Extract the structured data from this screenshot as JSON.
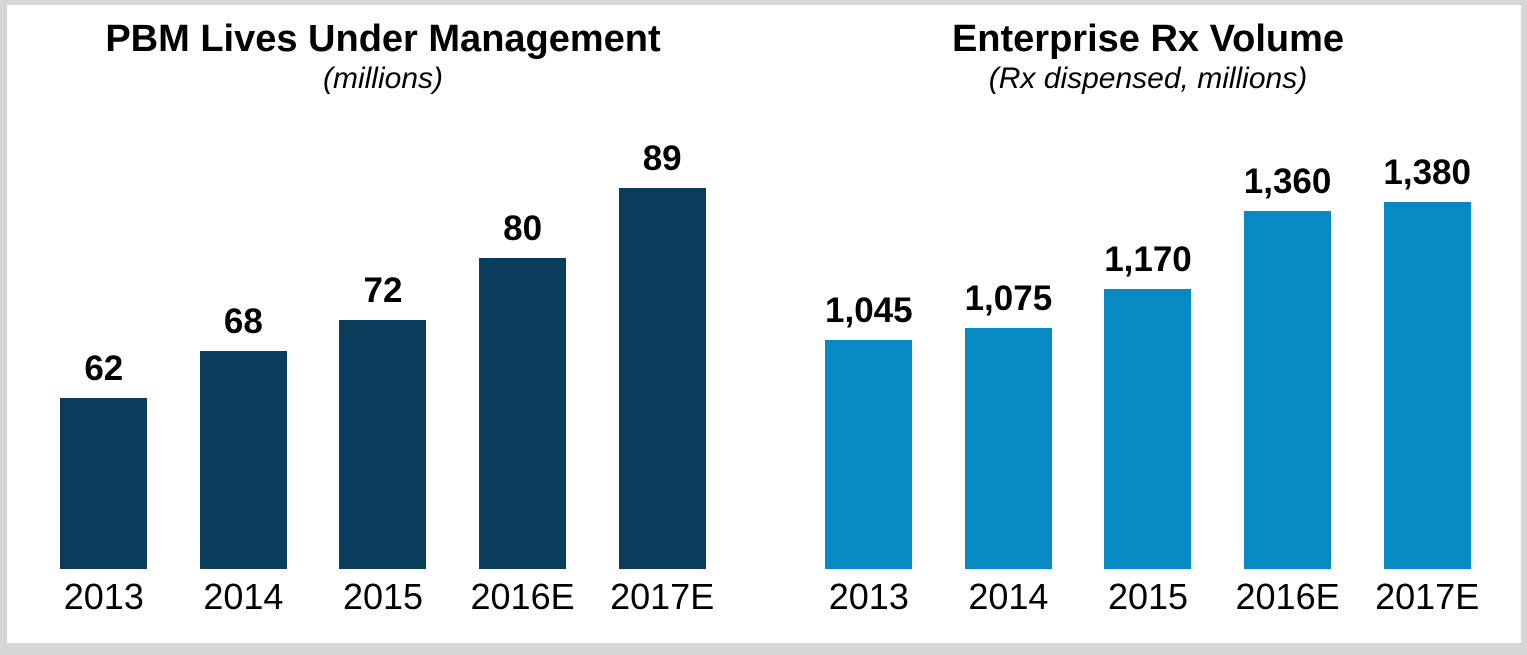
{
  "page": {
    "background_color": "#ffffff",
    "frame_color": "#d6d6d6"
  },
  "chart_data": [
    {
      "type": "bar",
      "title": "PBM Lives Under Management",
      "subtitle": "(millions)",
      "categories": [
        "2013",
        "2014",
        "2015",
        "2016E",
        "2017E"
      ],
      "values": [
        62,
        68,
        72,
        80,
        89
      ],
      "value_labels": [
        "62",
        "68",
        "72",
        "80",
        "89"
      ],
      "bar_color": "#0a3d5c",
      "xlabel": "",
      "ylabel": "",
      "ylim": [
        40,
        93
      ],
      "grid": false,
      "legend": "none",
      "value_labels_position": "above-bars"
    },
    {
      "type": "bar",
      "title": "Enterprise Rx Volume",
      "subtitle": "(Rx dispensed, millions)",
      "categories": [
        "2013",
        "2014",
        "2015",
        "2016E",
        "2017E"
      ],
      "values": [
        1045,
        1075,
        1170,
        1360,
        1380
      ],
      "value_labels": [
        "1,045",
        "1,075",
        "1,170",
        "1,360",
        "1,380"
      ],
      "bar_color": "#0789c4",
      "xlabel": "",
      "ylabel": "",
      "ylim": [
        490,
        1490
      ],
      "grid": false,
      "legend": "none",
      "value_labels_position": "above-bars"
    }
  ]
}
